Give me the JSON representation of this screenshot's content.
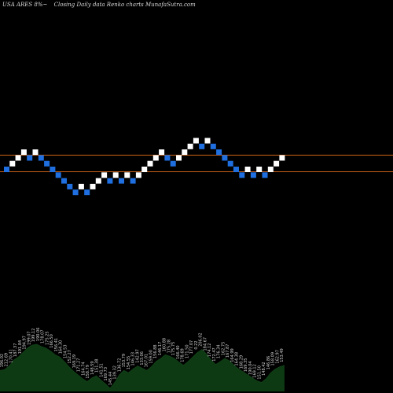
{
  "header": {
    "symbol": "USA ARES 8%~",
    "desc": "Closing Daily data  Renko  charts MunafaSutra.com"
  },
  "colors": {
    "background": "#000000",
    "up_brick": "#ffffff",
    "down_brick": "#1f6fe0",
    "ref_line": "#c8601a",
    "volume_fill": "#0d3a12",
    "volume_top": "#123f18",
    "label": "#d0d0d0"
  },
  "chart_data": {
    "type": "renko",
    "grid": false,
    "reference_lines": [
      2,
      0
    ],
    "bricks": [
      {
        "level": 0,
        "dir": "down"
      },
      {
        "level": 1,
        "dir": "up"
      },
      {
        "level": 2,
        "dir": "up"
      },
      {
        "level": 3,
        "dir": "up"
      },
      {
        "level": 2,
        "dir": "down"
      },
      {
        "level": 3,
        "dir": "up"
      },
      {
        "level": 2,
        "dir": "down"
      },
      {
        "level": 1,
        "dir": "down"
      },
      {
        "level": 0,
        "dir": "down"
      },
      {
        "level": -1,
        "dir": "down"
      },
      {
        "level": -2,
        "dir": "down"
      },
      {
        "level": -3,
        "dir": "down"
      },
      {
        "level": -4,
        "dir": "down"
      },
      {
        "level": -3,
        "dir": "up"
      },
      {
        "level": -4,
        "dir": "down"
      },
      {
        "level": -3,
        "dir": "up"
      },
      {
        "level": -2,
        "dir": "up"
      },
      {
        "level": -1,
        "dir": "up"
      },
      {
        "level": -2,
        "dir": "down"
      },
      {
        "level": -1,
        "dir": "up"
      },
      {
        "level": -2,
        "dir": "down"
      },
      {
        "level": -1,
        "dir": "up"
      },
      {
        "level": -2,
        "dir": "down"
      },
      {
        "level": -1,
        "dir": "up"
      },
      {
        "level": 0,
        "dir": "up"
      },
      {
        "level": 1,
        "dir": "up"
      },
      {
        "level": 2,
        "dir": "up"
      },
      {
        "level": 3,
        "dir": "up"
      },
      {
        "level": 2,
        "dir": "down"
      },
      {
        "level": 1,
        "dir": "down"
      },
      {
        "level": 2,
        "dir": "up"
      },
      {
        "level": 3,
        "dir": "up"
      },
      {
        "level": 4,
        "dir": "up"
      },
      {
        "level": 5,
        "dir": "up"
      },
      {
        "level": 4,
        "dir": "down"
      },
      {
        "level": 5,
        "dir": "up"
      },
      {
        "level": 4,
        "dir": "down"
      },
      {
        "level": 3,
        "dir": "down"
      },
      {
        "level": 2,
        "dir": "down"
      },
      {
        "level": 1,
        "dir": "down"
      },
      {
        "level": 0,
        "dir": "down"
      },
      {
        "level": -1,
        "dir": "down"
      },
      {
        "level": 0,
        "dir": "up"
      },
      {
        "level": -1,
        "dir": "down"
      },
      {
        "level": 0,
        "dir": "up"
      },
      {
        "level": -1,
        "dir": "down"
      },
      {
        "level": 0,
        "dir": "up"
      },
      {
        "level": 1,
        "dir": "up"
      },
      {
        "level": 2,
        "dir": "up"
      }
    ],
    "volume_labels": [
      "196.02",
      "212.69",
      "170.41",
      "187.37",
      "191.84",
      "194.97",
      "199.07",
      "199.12",
      "190.06",
      "178.07",
      "175.25",
      "166.50",
      "156.41",
      "164.30",
      "154.53",
      "152.27",
      "169.19",
      "171.27",
      "164.74",
      "158.79",
      "148.59",
      "151.38",
      "141.51",
      "169.73",
      "145.44",
      "139.32",
      "136.72",
      "153.79",
      "154.55",
      "146.33",
      "142.97",
      "133.06",
      "167.01",
      "159.00",
      "156.88",
      "146.17",
      "160.88",
      "175.28",
      "175.75",
      "166.40",
      "178.69",
      "171.50",
      "177.07",
      "0.22",
      "206.02",
      "184.67",
      "174.12",
      "172.47",
      "176.34",
      "162.75",
      "167.87",
      "164.99",
      "164.38",
      "168.29",
      "169.35",
      "190.04",
      "169.12",
      "151.50",
      "148.42",
      "146.86",
      "158.09",
      "162.97",
      "153.49"
    ],
    "volume_levels": [
      0.28,
      0.29,
      0.34,
      0.42,
      0.46,
      0.52,
      0.58,
      0.62,
      0.63,
      0.6,
      0.58,
      0.54,
      0.49,
      0.46,
      0.4,
      0.33,
      0.27,
      0.22,
      0.17,
      0.13,
      0.18,
      0.21,
      0.15,
      0.1,
      0.04,
      0.12,
      0.22,
      0.28,
      0.25,
      0.3,
      0.34,
      0.31,
      0.28,
      0.33,
      0.4,
      0.44,
      0.49,
      0.47,
      0.44,
      0.39,
      0.35,
      0.4,
      0.46,
      0.52,
      0.56,
      0.5,
      0.42,
      0.36,
      0.4,
      0.44,
      0.41,
      0.35,
      0.3,
      0.26,
      0.22,
      0.18,
      0.14,
      0.12,
      0.17,
      0.25,
      0.3,
      0.33,
      0.35
    ]
  }
}
